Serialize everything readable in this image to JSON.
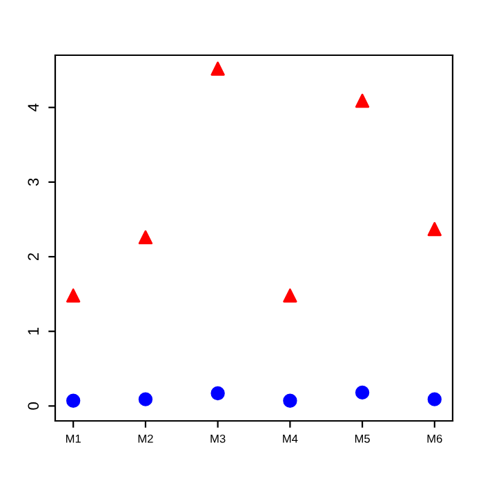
{
  "chart_data": {
    "type": "scatter",
    "categories": [
      "M1",
      "M2",
      "M3",
      "M4",
      "M5",
      "M6"
    ],
    "series": [
      {
        "color": "#ff0000",
        "marker": "triangle",
        "values": [
          1.48,
          2.26,
          4.52,
          1.48,
          4.09,
          2.37
        ]
      },
      {
        "color": "#0000ff",
        "marker": "circle",
        "values": [
          0.07,
          0.09,
          0.17,
          0.07,
          0.18,
          0.09
        ]
      }
    ],
    "ylim": [
      -0.2,
      4.7
    ],
    "yticks": [
      0,
      1,
      2,
      3,
      4
    ],
    "grid": false,
    "legend": false
  }
}
